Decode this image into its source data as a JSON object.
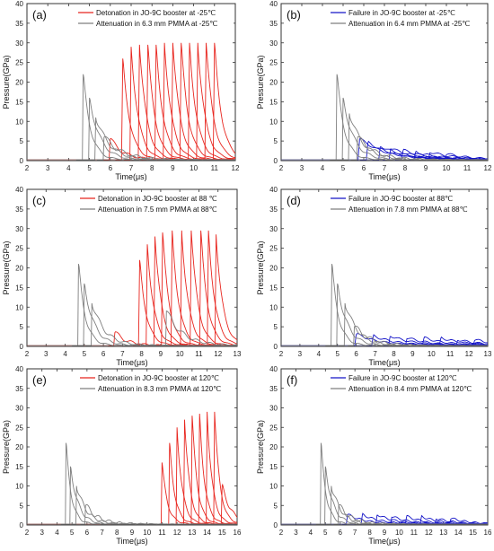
{
  "figure": {
    "panels": [
      {
        "id": "a",
        "letter": "(a)",
        "ylabel": "Pressure(GPa)",
        "xlabel": "Time(μs)"
      },
      {
        "id": "b",
        "letter": "(b)",
        "ylabel": "Pressure(GPa)",
        "xlabel": "Time(μs)"
      },
      {
        "id": "c",
        "letter": "(c)",
        "ylabel": "Pressure(GPa)",
        "xlabel": "Time(μs)"
      },
      {
        "id": "d",
        "letter": "(d)",
        "ylabel": "Pressure(GPa)",
        "xlabel": "Time(μs)"
      },
      {
        "id": "e",
        "letter": "(e)",
        "ylabel": "Pressure(GPa)",
        "xlabel": "Time(μs)"
      },
      {
        "id": "f",
        "letter": "(f)",
        "ylabel": "Pressure(GPa)",
        "xlabel": "Time(μs)"
      }
    ]
  },
  "colors": {
    "red": "#e8251e",
    "gray": "#7f7f7f",
    "blue": "#1414c8",
    "axis": "#333333"
  },
  "chart_data": [
    {
      "type": "line",
      "panel": "(a)",
      "xlabel": "Time(μs)",
      "ylabel": "Pressure(GPa)",
      "xlim": [
        2,
        12
      ],
      "ylim": [
        0,
        40
      ],
      "xticks": [
        2,
        3,
        4,
        5,
        6,
        7,
        8,
        9,
        10,
        11,
        12
      ],
      "yticks": [
        0,
        5,
        10,
        15,
        20,
        25,
        30,
        35,
        40
      ],
      "legend": "top-right",
      "series": [
        {
          "name": "Detonation in JO-9C booster at -25℃",
          "color": "red",
          "peak_times": [
            6.0,
            6.6,
            7.0,
            7.4,
            7.8,
            8.2,
            8.6,
            9.0,
            9.4,
            9.8,
            10.2,
            10.6,
            11.0
          ],
          "peaks": [
            5.5,
            26,
            29,
            29.5,
            29.5,
            29.5,
            30,
            30,
            30,
            30,
            30,
            30,
            30
          ]
        },
        {
          "name": "Attenuation in 6.3 mm PMMA at -25℃",
          "color": "gray",
          "peak_times": [
            4.7,
            5.0,
            5.3,
            5.7
          ],
          "peaks": [
            22,
            16,
            11,
            6
          ]
        }
      ]
    },
    {
      "type": "line",
      "panel": "(b)",
      "xlabel": "Time(μs)",
      "ylabel": "Pressure(GPa)",
      "xlim": [
        2,
        12
      ],
      "ylim": [
        0,
        40
      ],
      "xticks": [
        2,
        3,
        4,
        5,
        6,
        7,
        8,
        9,
        10,
        11,
        12
      ],
      "yticks": [
        0,
        5,
        10,
        15,
        20,
        25,
        30,
        35,
        40
      ],
      "legend": "top-right",
      "series": [
        {
          "name": "Failure in JO-9C booster at -25℃",
          "color": "blue",
          "peak_times": [
            5.8,
            6.2,
            6.8,
            7.3,
            7.9,
            8.5,
            9.2,
            10.0
          ],
          "peaks": [
            5.5,
            4.5,
            3.5,
            3,
            2.5,
            2,
            2,
            1.5
          ]
        },
        {
          "name": "Attenuation in 6.4 mm PMMA at -25℃",
          "color": "gray",
          "peak_times": [
            4.7,
            5.0,
            5.3,
            5.7
          ],
          "peaks": [
            22,
            16,
            12,
            6
          ]
        }
      ]
    },
    {
      "type": "line",
      "panel": "(c)",
      "xlabel": "Time(μs)",
      "ylabel": "Pressure(GPa)",
      "xlim": [
        2,
        13
      ],
      "ylim": [
        0,
        40
      ],
      "xticks": [
        2,
        3,
        4,
        5,
        6,
        7,
        8,
        9,
        10,
        11,
        12,
        13
      ],
      "yticks": [
        0,
        5,
        10,
        15,
        20,
        25,
        30,
        35,
        40
      ],
      "legend": "top-right",
      "series": [
        {
          "name": "Detonation in JO-9C booster at 88 ℃",
          "color": "red",
          "peak_times": [
            6.6,
            7.9,
            8.3,
            8.7,
            9.1,
            9.6,
            10.1,
            10.6,
            11.1,
            11.5,
            11.9
          ],
          "peaks": [
            3.5,
            22,
            26,
            28,
            29,
            29.5,
            29.5,
            29.5,
            29.5,
            29.5,
            28.5
          ]
        },
        {
          "name": "Attenuation in 7.5 mm PMMA at 88℃",
          "color": "gray",
          "peak_times": [
            4.7,
            5.0,
            5.4,
            9.3
          ],
          "peaks": [
            21,
            16,
            11,
            9
          ]
        }
      ]
    },
    {
      "type": "line",
      "panel": "(d)",
      "xlabel": "Time(μs)",
      "ylabel": "Pressure(GPa)",
      "xlim": [
        2,
        13
      ],
      "ylim": [
        0,
        40
      ],
      "xticks": [
        2,
        3,
        4,
        5,
        6,
        7,
        8,
        9,
        10,
        11,
        12,
        13
      ],
      "yticks": [
        0,
        5,
        10,
        15,
        20,
        25,
        30,
        35,
        40
      ],
      "legend": "top-right",
      "series": [
        {
          "name": "Failure in JO-9C booster at 88℃",
          "color": "blue",
          "peak_times": [
            6.0,
            6.9,
            7.8,
            8.7,
            9.6,
            10.5,
            11.4,
            12.3
          ],
          "peaks": [
            3,
            2.5,
            2.5,
            2,
            2,
            2,
            1.5,
            1.5
          ]
        },
        {
          "name": "Attenuation in 7.8 mm PMMA at 88℃",
          "color": "gray",
          "peak_times": [
            4.7,
            5.0,
            5.4,
            5.9
          ],
          "peaks": [
            21,
            16,
            11,
            5
          ]
        }
      ]
    },
    {
      "type": "line",
      "panel": "(e)",
      "xlabel": "Time(μs)",
      "ylabel": "Pressure(GPa)",
      "xlim": [
        2,
        16
      ],
      "ylim": [
        0,
        40
      ],
      "xticks": [
        2,
        3,
        4,
        5,
        6,
        7,
        8,
        9,
        10,
        11,
        12,
        13,
        14,
        15,
        16
      ],
      "yticks": [
        0,
        5,
        10,
        15,
        20,
        25,
        30,
        35,
        40
      ],
      "legend": "top-right",
      "series": [
        {
          "name": "Detonation in JO-9C booster at 120℃",
          "color": "red",
          "peak_times": [
            11.0,
            11.5,
            12.0,
            12.5,
            13.0,
            13.5,
            14.0,
            14.5,
            15.0
          ],
          "peaks": [
            16,
            21,
            25,
            27,
            28,
            28.5,
            29,
            29,
            10
          ]
        },
        {
          "name": "Attenuation in 8.3 mm PMMA at 120℃",
          "color": "gray",
          "peak_times": [
            4.6,
            4.9,
            5.3,
            5.9
          ],
          "peaks": [
            21,
            15,
            10,
            5
          ]
        }
      ]
    },
    {
      "type": "line",
      "panel": "(f)",
      "xlabel": "Time(μs)",
      "ylabel": "Pressure(GPa)",
      "xlim": [
        2,
        16
      ],
      "ylim": [
        0,
        40
      ],
      "xticks": [
        2,
        3,
        4,
        5,
        6,
        7,
        8,
        9,
        10,
        11,
        12,
        13,
        14,
        15,
        16
      ],
      "yticks": [
        0,
        5,
        10,
        15,
        20,
        25,
        30,
        35,
        40
      ],
      "legend": "top-right",
      "series": [
        {
          "name": "Failure in JO-9C booster at 120℃",
          "color": "blue",
          "peak_times": [
            6.5,
            7.5,
            8.5,
            9.5,
            10.5,
            11.5,
            12.5,
            13.5
          ],
          "peaks": [
            2.5,
            2.5,
            2.5,
            2,
            2,
            2,
            1.5,
            1.5
          ]
        },
        {
          "name": "Attenuation in 8.4 mm PMMA at 120℃",
          "color": "gray",
          "peak_times": [
            4.7,
            5.0,
            5.4,
            5.9
          ],
          "peaks": [
            21,
            15,
            10,
            5
          ]
        }
      ]
    }
  ]
}
